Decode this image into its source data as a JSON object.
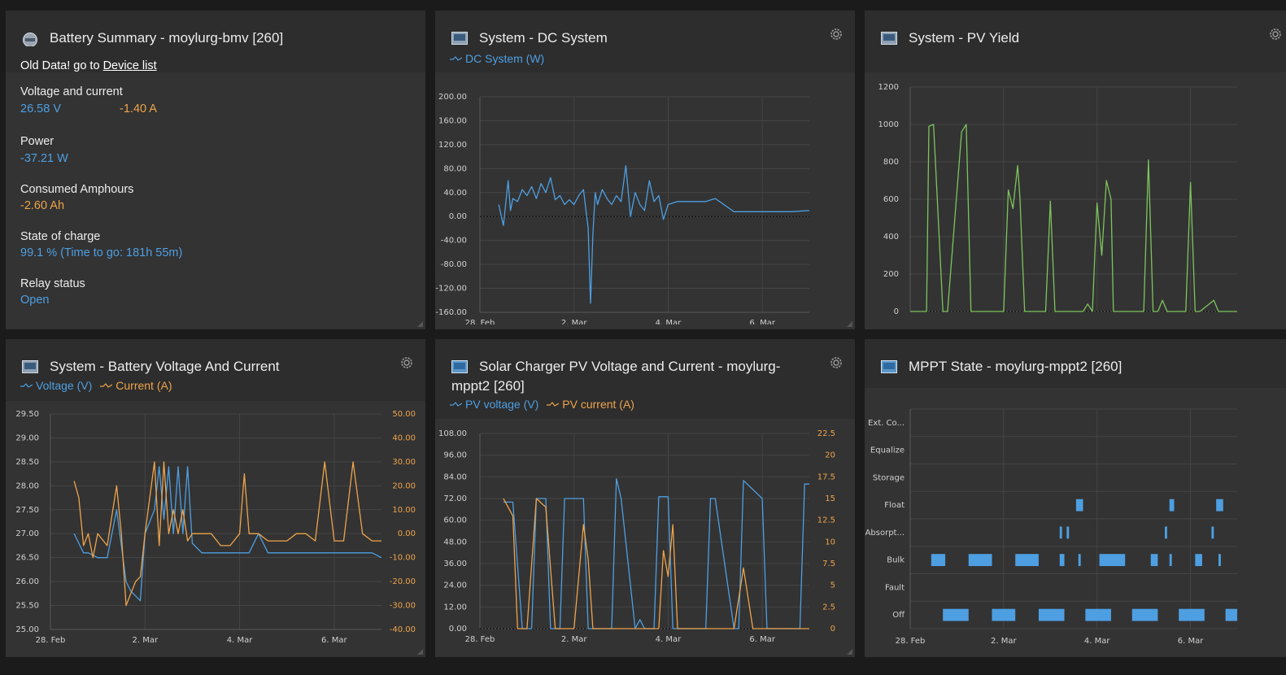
{
  "battery": {
    "title": "Battery Summary - moylurg-bmv [260]",
    "warning_prefix": "Old Data! go to",
    "warning_link": "Device list",
    "voltage_current_label": "Voltage and current",
    "voltage": "26.58 V",
    "current": "-1.40 A",
    "power_label": "Power",
    "power": "-37.21 W",
    "consumed_label": "Consumed Amphours",
    "consumed": "-2.60 Ah",
    "soc_label": "State of charge",
    "soc": "99.1 % (Time to go: 181h 55m)",
    "relay_label": "Relay status",
    "relay": "Open"
  },
  "dc": {
    "title": "System - DC System",
    "legend": "DC System (W)"
  },
  "pv": {
    "title": "System - PV Yield"
  },
  "bvc": {
    "title": "System - Battery Voltage And Current",
    "legend_v": "Voltage (V)",
    "legend_c": "Current (A)"
  },
  "solar": {
    "title_line1": "Solar Charger PV Voltage and Current - moylurg-",
    "title_line2": "mppt2 [260]",
    "legend_v": "PV voltage (V)",
    "legend_c": "PV current (A)"
  },
  "mppt": {
    "title": "MPPT State - moylurg-mppt2 [260]"
  },
  "colors": {
    "blue": "#4e9fe2",
    "orange": "#eea44b",
    "green": "#7ec45c",
    "panel": "#333333",
    "header": "#2d2d2d"
  },
  "chart_data": [
    {
      "type": "line",
      "name": "dc-system",
      "x_ticks": [
        "28. Feb",
        "2. Mar",
        "4. Mar",
        "6. Mar"
      ],
      "y_ticks": [
        "200.00",
        "160.00",
        "120.00",
        "80.00",
        "40.00",
        "0.00",
        "-40.00",
        "-80.00",
        "-120.00",
        "-160.00"
      ],
      "ylim": [
        -160,
        200
      ],
      "xlim": [
        0,
        7
      ],
      "series": [
        {
          "name": "DC System (W)",
          "x": [
            0.4,
            0.5,
            0.6,
            0.65,
            0.7,
            0.8,
            0.9,
            1.0,
            1.1,
            1.2,
            1.3,
            1.4,
            1.5,
            1.6,
            1.7,
            1.8,
            1.9,
            2.0,
            2.1,
            2.2,
            2.3,
            2.35,
            2.4,
            2.45,
            2.5,
            2.6,
            2.7,
            2.8,
            2.9,
            3.0,
            3.1,
            3.2,
            3.3,
            3.4,
            3.5,
            3.6,
            3.7,
            3.8,
            3.9,
            4.0,
            4.2,
            4.4,
            4.6,
            4.8,
            5.0,
            5.4,
            5.5,
            5.8,
            6.2,
            6.6,
            7.0
          ],
          "y": [
            20,
            -15,
            60,
            10,
            30,
            25,
            45,
            35,
            50,
            30,
            55,
            40,
            65,
            28,
            35,
            20,
            28,
            20,
            35,
            45,
            -20,
            -145,
            -30,
            40,
            20,
            45,
            30,
            20,
            35,
            25,
            85,
            0,
            40,
            20,
            10,
            60,
            25,
            35,
            -5,
            20,
            25,
            25,
            25,
            25,
            30,
            8,
            8,
            8,
            8,
            8,
            10
          ]
        }
      ]
    },
    {
      "type": "line",
      "name": "pv-yield",
      "x_ticks": [
        "28. Feb",
        "2. Mar",
        "4. Mar",
        "6. Mar"
      ],
      "y_ticks": [
        "1200",
        "1000",
        "800",
        "600",
        "400",
        "200",
        "0"
      ],
      "ylim": [
        0,
        1200
      ],
      "xlim": [
        0,
        7
      ],
      "series": [
        {
          "name": "PV Yield",
          "x": [
            0.0,
            0.35,
            0.4,
            0.5,
            0.7,
            0.8,
            1.1,
            1.2,
            1.3,
            1.5,
            1.7,
            2.0,
            2.1,
            2.2,
            2.3,
            2.35,
            2.4,
            2.45,
            2.5,
            2.6,
            2.7,
            2.9,
            3.0,
            3.1,
            3.2,
            3.3,
            3.4,
            3.6,
            3.7,
            3.8,
            3.9,
            4.0,
            4.1,
            4.2,
            4.3,
            4.35,
            4.4,
            4.5,
            4.6,
            4.7,
            5.0,
            5.1,
            5.2,
            5.3,
            5.4,
            5.5,
            5.7,
            5.8,
            5.9,
            6.0,
            6.1,
            6.2,
            6.5,
            6.6,
            6.7,
            6.8,
            7.0
          ],
          "y": [
            0,
            0,
            990,
            1000,
            0,
            0,
            960,
            1000,
            0,
            0,
            0,
            0,
            650,
            550,
            780,
            600,
            300,
            0,
            0,
            0,
            0,
            0,
            590,
            0,
            0,
            0,
            0,
            0,
            0,
            40,
            0,
            580,
            300,
            700,
            600,
            0,
            0,
            0,
            0,
            0,
            0,
            810,
            0,
            0,
            60,
            0,
            0,
            0,
            0,
            690,
            0,
            0,
            60,
            0,
            0,
            0,
            0
          ]
        }
      ]
    },
    {
      "type": "line",
      "name": "battery-voltage-current",
      "x_ticks": [
        "28. Feb",
        "2. Mar",
        "4. Mar",
        "6. Mar"
      ],
      "y_ticks_left": [
        "29.50",
        "29.00",
        "28.50",
        "28.00",
        "27.50",
        "27.00",
        "26.50",
        "26.00",
        "25.50",
        "25.00"
      ],
      "y_ticks_right": [
        "50.00",
        "40.00",
        "30.00",
        "20.00",
        "10.00",
        "0.00",
        "-10.00",
        "-20.00",
        "-30.00",
        "-40.00"
      ],
      "ylim_left": [
        25,
        29.5
      ],
      "ylim_right": [
        -40,
        50
      ],
      "xlim": [
        0,
        7
      ],
      "series": [
        {
          "name": "Voltage (V)",
          "axis": "left",
          "x": [
            0.5,
            0.6,
            0.7,
            0.8,
            1.0,
            1.2,
            1.3,
            1.4,
            1.6,
            1.7,
            1.8,
            1.9,
            2.0,
            2.2,
            2.3,
            2.4,
            2.5,
            2.6,
            2.7,
            2.8,
            2.9,
            3.0,
            3.2,
            3.4,
            3.6,
            3.8,
            4.0,
            4.2,
            4.4,
            4.6,
            4.8,
            5.0,
            5.2,
            5.4,
            5.6,
            5.8,
            6.0,
            6.2,
            6.4,
            6.6,
            6.8,
            7.0
          ],
          "y": [
            27.0,
            26.8,
            26.6,
            26.6,
            26.5,
            26.5,
            27.0,
            27.5,
            26.0,
            25.8,
            25.7,
            25.6,
            27.0,
            27.5,
            28.4,
            27.3,
            28.4,
            27.0,
            28.4,
            27.0,
            28.4,
            26.8,
            26.6,
            26.6,
            26.6,
            26.6,
            26.6,
            26.6,
            27.0,
            26.6,
            26.6,
            26.6,
            26.6,
            26.6,
            26.6,
            26.6,
            26.6,
            26.6,
            26.6,
            26.6,
            26.6,
            26.5
          ]
        },
        {
          "name": "Current (A)",
          "axis": "right",
          "x": [
            0.5,
            0.6,
            0.7,
            0.8,
            0.9,
            1.0,
            1.2,
            1.4,
            1.5,
            1.6,
            1.7,
            1.8,
            1.9,
            2.0,
            2.2,
            2.3,
            2.4,
            2.5,
            2.6,
            2.7,
            2.8,
            2.9,
            3.0,
            3.2,
            3.4,
            3.6,
            3.8,
            4.0,
            4.1,
            4.2,
            4.4,
            4.6,
            4.8,
            5.0,
            5.2,
            5.4,
            5.6,
            5.8,
            6.0,
            6.2,
            6.4,
            6.6,
            6.8,
            7.0
          ],
          "y": [
            22,
            15,
            -5,
            0,
            -10,
            0,
            -5,
            20,
            0,
            -30,
            -25,
            -20,
            -18,
            0,
            30,
            -5,
            30,
            0,
            10,
            0,
            10,
            -3,
            0,
            0,
            0,
            -5,
            -5,
            0,
            25,
            0,
            0,
            -3,
            -3,
            -3,
            0,
            0,
            -3,
            30,
            -3,
            -3,
            30,
            0,
            -3,
            -3
          ]
        }
      ]
    },
    {
      "type": "line",
      "name": "solar-pv-voltage-current",
      "x_ticks": [
        "28. Feb",
        "2. Mar",
        "4. Mar",
        "6. Mar"
      ],
      "y_ticks_left": [
        "108.00",
        "96.00",
        "84.00",
        "72.00",
        "60.00",
        "48.00",
        "36.00",
        "24.00",
        "12.00",
        "0.00"
      ],
      "y_ticks_right": [
        "22.5",
        "20",
        "17.5",
        "15",
        "12.5",
        "10",
        "7.5",
        "5",
        "2.5",
        "0"
      ],
      "ylim_left": [
        0,
        108
      ],
      "ylim_right": [
        0,
        22.5
      ],
      "xlim": [
        0,
        7
      ],
      "series": [
        {
          "name": "PV voltage (V)",
          "axis": "left",
          "x": [
            0.5,
            0.6,
            0.7,
            0.9,
            1.1,
            1.2,
            1.4,
            1.5,
            1.7,
            1.8,
            1.9,
            2.2,
            2.3,
            2.4,
            2.8,
            2.9,
            3.0,
            3.3,
            3.4,
            3.5,
            3.7,
            3.8,
            4.0,
            4.1,
            4.2,
            4.6,
            4.8,
            4.9,
            5.0,
            5.4,
            5.5,
            5.6,
            6.0,
            6.1,
            6.2,
            6.6,
            6.8,
            6.9,
            7.0
          ],
          "y": [
            70,
            70,
            70,
            0,
            0,
            72,
            72,
            0,
            0,
            72,
            72,
            72,
            0,
            0,
            0,
            83,
            72,
            0,
            5,
            0,
            0,
            73,
            73,
            0,
            0,
            0,
            0,
            72,
            72,
            0,
            0,
            82,
            72,
            0,
            0,
            0,
            0,
            80,
            80
          ]
        },
        {
          "name": "PV current (A)",
          "axis": "right",
          "x": [
            0.5,
            0.6,
            0.7,
            0.8,
            0.9,
            1.0,
            1.2,
            1.4,
            1.6,
            1.8,
            2.0,
            2.2,
            2.3,
            2.4,
            2.6,
            2.8,
            3.0,
            3.2,
            3.4,
            3.6,
            3.8,
            3.9,
            4.0,
            4.1,
            4.2,
            4.4,
            4.6,
            4.8,
            5.0,
            5.2,
            5.4,
            5.6,
            5.8,
            6.0,
            6.2,
            6.4,
            6.6,
            6.8,
            7.0
          ],
          "y": [
            15,
            14,
            13,
            0,
            0,
            0,
            15,
            14,
            0,
            0,
            0,
            12,
            8,
            0,
            0,
            0,
            0,
            0,
            0,
            0,
            0,
            9,
            6,
            12,
            0,
            0,
            0,
            0,
            0,
            0,
            0,
            7,
            0,
            0,
            0,
            0,
            0,
            0,
            0
          ]
        }
      ]
    },
    {
      "type": "bar",
      "name": "mppt-state",
      "x_ticks": [
        "28. Feb",
        "2. Mar",
        "4. Mar",
        "6. Mar"
      ],
      "states": [
        "Ext. Co...",
        "Equalize",
        "Storage",
        "Float",
        "Absorpt...",
        "Bulk",
        "Fault",
        "Off"
      ],
      "xlim": [
        0,
        7
      ],
      "intervals": [
        {
          "state": "Float",
          "start": 3.55,
          "end": 3.7
        },
        {
          "state": "Float",
          "start": 5.55,
          "end": 5.65
        },
        {
          "state": "Float",
          "start": 6.55,
          "end": 6.7
        },
        {
          "state": "Absorpt...",
          "start": 3.2,
          "end": 3.25
        },
        {
          "state": "Absorpt...",
          "start": 3.35,
          "end": 3.4
        },
        {
          "state": "Absorpt...",
          "start": 5.45,
          "end": 5.5
        },
        {
          "state": "Absorpt...",
          "start": 6.45,
          "end": 6.5
        },
        {
          "state": "Bulk",
          "start": 0.45,
          "end": 0.75
        },
        {
          "state": "Bulk",
          "start": 1.25,
          "end": 1.75
        },
        {
          "state": "Bulk",
          "start": 2.25,
          "end": 2.75
        },
        {
          "state": "Bulk",
          "start": 3.2,
          "end": 3.3
        },
        {
          "state": "Bulk",
          "start": 3.6,
          "end": 3.65
        },
        {
          "state": "Bulk",
          "start": 4.05,
          "end": 4.6
        },
        {
          "state": "Bulk",
          "start": 5.15,
          "end": 5.3
        },
        {
          "state": "Bulk",
          "start": 5.55,
          "end": 5.6
        },
        {
          "state": "Bulk",
          "start": 6.1,
          "end": 6.25
        },
        {
          "state": "Bulk",
          "start": 6.6,
          "end": 6.65
        },
        {
          "state": "Off",
          "start": 0.7,
          "end": 1.25
        },
        {
          "state": "Off",
          "start": 1.75,
          "end": 2.25
        },
        {
          "state": "Off",
          "start": 2.75,
          "end": 3.3
        },
        {
          "state": "Off",
          "start": 3.75,
          "end": 4.3
        },
        {
          "state": "Off",
          "start": 4.75,
          "end": 5.3
        },
        {
          "state": "Off",
          "start": 5.75,
          "end": 6.3
        },
        {
          "state": "Off",
          "start": 6.75,
          "end": 7.0
        }
      ]
    }
  ]
}
